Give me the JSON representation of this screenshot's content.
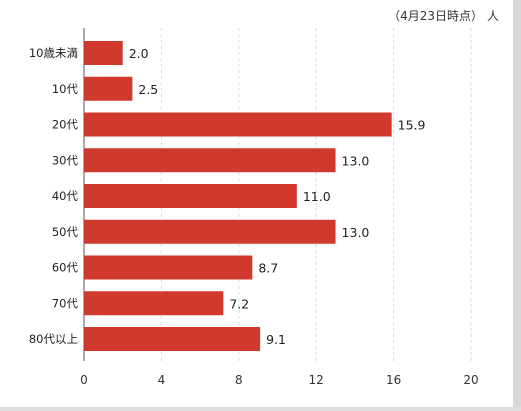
{
  "header": {
    "date_note": "（4月23日時点）",
    "unit": "人"
  },
  "chart_data": {
    "type": "bar",
    "orientation": "horizontal",
    "categories": [
      "10歳未満",
      "10代",
      "20代",
      "30代",
      "40代",
      "50代",
      "60代",
      "70代",
      "80代以上"
    ],
    "values": [
      2.0,
      2.5,
      15.9,
      13.0,
      11.0,
      13.0,
      8.7,
      7.2,
      9.1
    ],
    "value_labels": [
      "2.0",
      "2.5",
      "15.9",
      "13.0",
      "11.0",
      "13.0",
      "8.7",
      "7.2",
      "9.1"
    ],
    "xlim": [
      0,
      20
    ],
    "xticks": [
      "0",
      "4",
      "8",
      "12",
      "16",
      "20"
    ],
    "unit": "人",
    "grid": true,
    "bar_color": "#d03a2e"
  }
}
